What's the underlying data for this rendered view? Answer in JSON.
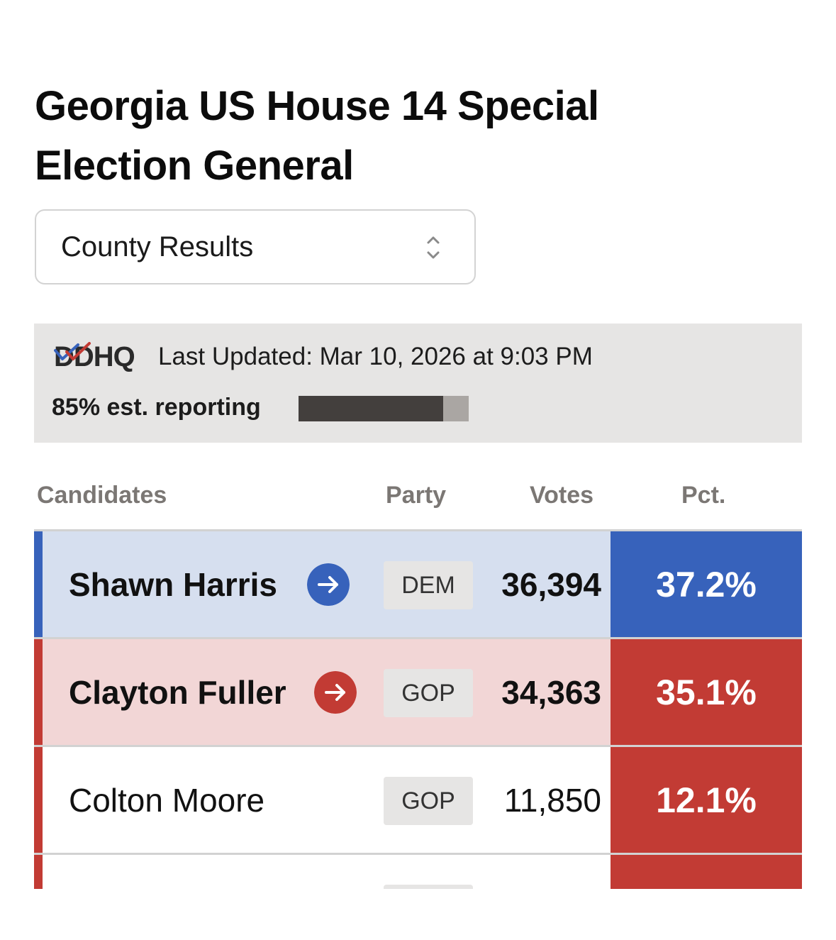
{
  "page": {
    "title_line1": "Georgia US House 14 Special",
    "title_line2": "Election General"
  },
  "view_select": {
    "selected": "County Results",
    "icon": "up-down-chevron-icon"
  },
  "status_panel": {
    "logo_text": "DDHQ",
    "last_updated": "Last Updated: Mar 10, 2026 at 9:03 PM",
    "reporting_label": "85% est. reporting",
    "reporting_fraction": 0.85
  },
  "table": {
    "headers": {
      "candidates": "Candidates",
      "party": "Party",
      "votes": "Votes",
      "pct": "Pct."
    },
    "rows": [
      {
        "name": "Shawn Harris",
        "party": "DEM",
        "votes": "36,394",
        "pct": "37.2%",
        "advancing": true,
        "icon": "arrow-right-circle-icon"
      },
      {
        "name": "Clayton Fuller",
        "party": "GOP",
        "votes": "34,363",
        "pct": "35.1%",
        "advancing": true,
        "icon": "arrow-right-circle-icon"
      },
      {
        "name": "Colton Moore",
        "party": "GOP",
        "votes": "11,850",
        "pct": "12.1%",
        "advancing": false
      }
    ]
  },
  "colors": {
    "dem": "#3762bb",
    "dem_light": "#d6dfef",
    "gop": "#c23b34",
    "gop_light": "#f2d6d6",
    "party_badge_bg": "#e6e5e4",
    "panel_bg": "#e6e5e4"
  }
}
